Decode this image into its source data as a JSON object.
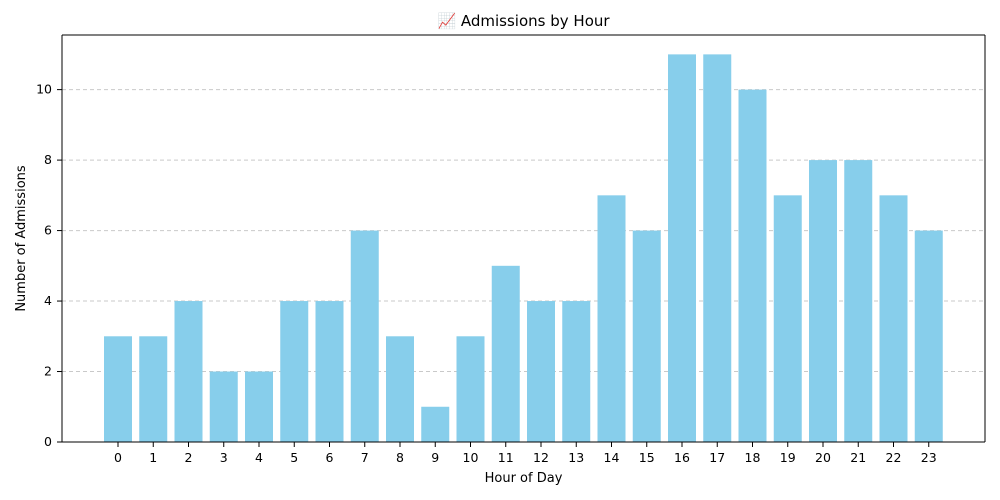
{
  "chart_data": {
    "type": "bar",
    "title": "📈 Admissions by Hour",
    "xlabel": "Hour of Day",
    "ylabel": "Number of Admissions",
    "categories": [
      "0",
      "1",
      "2",
      "3",
      "4",
      "5",
      "6",
      "7",
      "8",
      "9",
      "10",
      "11",
      "12",
      "13",
      "14",
      "15",
      "16",
      "17",
      "18",
      "19",
      "20",
      "21",
      "22",
      "23"
    ],
    "values": [
      3,
      3,
      4,
      2,
      2,
      4,
      4,
      6,
      3,
      1,
      3,
      5,
      4,
      4,
      7,
      6,
      11,
      11,
      10,
      7,
      8,
      8,
      7,
      6
    ],
    "yticks": [
      0,
      2,
      4,
      6,
      8,
      10
    ],
    "ylim": [
      0,
      11.55
    ],
    "grid": "y",
    "bar_color": "#87ceeb"
  }
}
